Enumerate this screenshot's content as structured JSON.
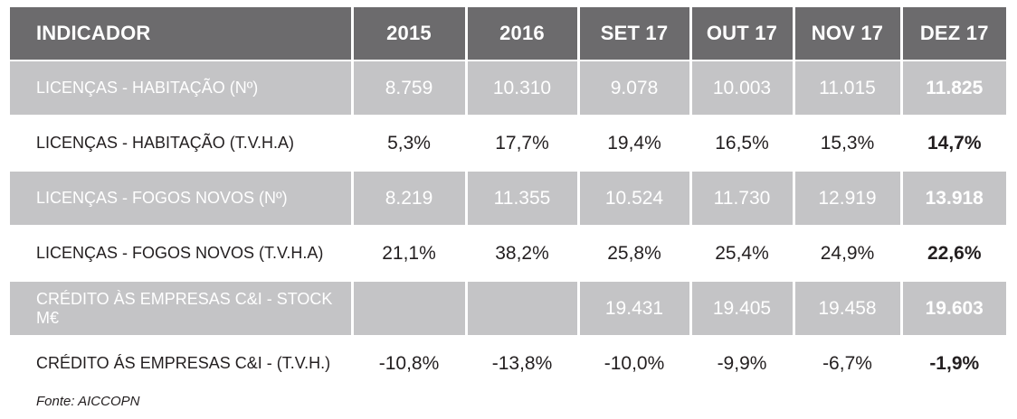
{
  "table": {
    "headers": [
      "INDICADOR",
      "2015",
      "2016",
      "SET 17",
      "OUT 17",
      "NOV 17",
      "DEZ 17"
    ],
    "rows": [
      {
        "label": "LICENÇAS - HABITAÇÃO (Nº)",
        "y2015": "8.759",
        "y2016": "10.310",
        "set17": "9.078",
        "out17": "10.003",
        "nov17": "11.015",
        "dez17": "11.825"
      },
      {
        "label": "LICENÇAS - HABITAÇÃO (T.V.H.A)",
        "y2015": "5,3%",
        "y2016": "17,7%",
        "set17": "19,4%",
        "out17": "16,5%",
        "nov17": "15,3%",
        "dez17": "14,7%"
      },
      {
        "label": "LICENÇAS - FOGOS NOVOS (Nº)",
        "y2015": "8.219",
        "y2016": "11.355",
        "set17": "10.524",
        "out17": "11.730",
        "nov17": "12.919",
        "dez17": "13.918"
      },
      {
        "label": "LICENÇAS - FOGOS NOVOS (T.V.H.A)",
        "y2015": "21,1%",
        "y2016": "38,2%",
        "set17": "25,8%",
        "out17": "25,4%",
        "nov17": "24,9%",
        "dez17": "22,6%"
      },
      {
        "label": "CRÉDITO ÀS EMPRESAS C&I - STOCK M€",
        "y2015": "",
        "y2016": "",
        "set17": "19.431",
        "out17": "19.405",
        "nov17": "19.458",
        "dez17": "19.603"
      },
      {
        "label": "CRÉDITO ÁS EMPRESAS C&I - (T.V.H.)",
        "y2015": "-10,8%",
        "y2016": "-13,8%",
        "set17": "-10,0%",
        "out17": "-9,9%",
        "nov17": "-6,7%",
        "dez17": "-1,9%"
      }
    ]
  },
  "source": "Fonte: AICCOPN",
  "colors": {
    "header_bg": "#6c6b6d",
    "shaded_row_bg": "#c4c4c6",
    "text_dark": "#231f20"
  }
}
